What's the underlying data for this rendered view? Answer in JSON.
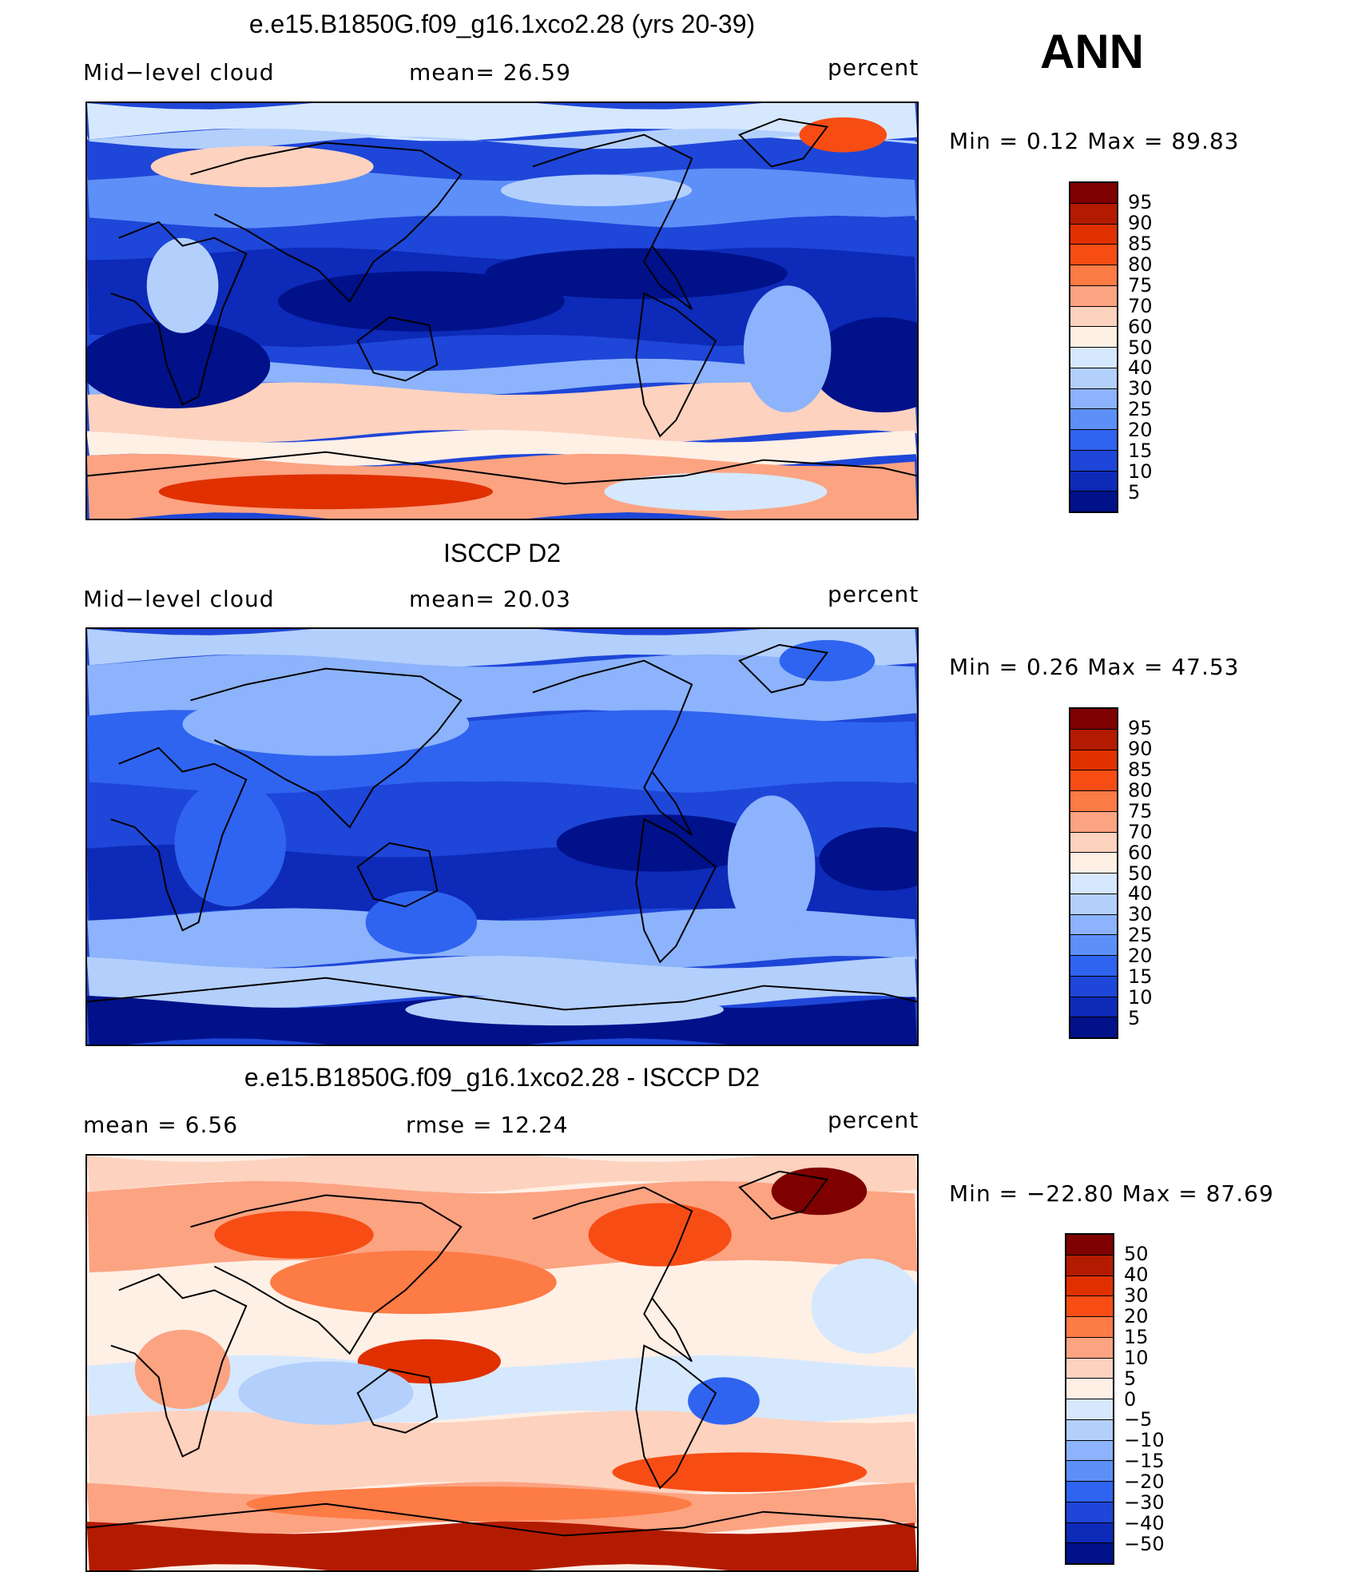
{
  "season": "ANN",
  "panels": [
    {
      "title": "e.e15.B1850G.f09_g16.1xco2.28 (yrs 20-39)",
      "left_label": "Mid−level  cloud",
      "mid_label": "mean=   26.59",
      "units": "percent",
      "minmax": "Min  =      0.12  Max  =     89.83",
      "colorbar": {
        "labels": [
          "95",
          "90",
          "85",
          "80",
          "75",
          "70",
          "60",
          "50",
          "40",
          "30",
          "25",
          "20",
          "15",
          "10",
          "5"
        ],
        "colors": [
          "#7f0000",
          "#b31b00",
          "#e03000",
          "#f74d14",
          "#fd7b45",
          "#fca382",
          "#fdd2bf",
          "#fff0e6",
          "#d6e8fd",
          "#b3cffc",
          "#8cb3fb",
          "#5d8ff8",
          "#2f64f0",
          "#1e46d8",
          "#0d2ab8",
          "#00118a"
        ]
      },
      "map_theme": "model"
    },
    {
      "title": "ISCCP D2",
      "left_label": "Mid−level  cloud",
      "mid_label": "mean=   20.03",
      "units": "percent",
      "minmax": "Min  =      0.26  Max  =     47.53",
      "colorbar": {
        "labels": [
          "95",
          "90",
          "85",
          "80",
          "75",
          "70",
          "60",
          "50",
          "40",
          "30",
          "25",
          "20",
          "15",
          "10",
          "5"
        ],
        "colors": [
          "#7f0000",
          "#b31b00",
          "#e03000",
          "#f74d14",
          "#fd7b45",
          "#fca382",
          "#fdd2bf",
          "#fff0e6",
          "#d6e8fd",
          "#b3cffc",
          "#8cb3fb",
          "#5d8ff8",
          "#2f64f0",
          "#1e46d8",
          "#0d2ab8",
          "#00118a"
        ]
      },
      "map_theme": "obs"
    },
    {
      "title": "e.e15.B1850G.f09_g16.1xco2.28 - ISCCP D2",
      "left_label": "mean  =     6.56",
      "mid_label": "rmse  =    12.24",
      "units": "percent",
      "minmax": "Min  = −22.80  Max  =     87.69",
      "colorbar": {
        "labels": [
          "50",
          "40",
          "30",
          "20",
          "15",
          "10",
          "5",
          "0",
          "−5",
          "−10",
          "−15",
          "−20",
          "−30",
          "−40",
          "−50"
        ],
        "colors": [
          "#7f0000",
          "#b31b00",
          "#e03000",
          "#f74d14",
          "#fd7b45",
          "#fca382",
          "#fdd2bf",
          "#fff0e6",
          "#d6e8fd",
          "#b3cffc",
          "#8cb3fb",
          "#5d8ff8",
          "#2f64f0",
          "#1e46d8",
          "#0d2ab8",
          "#00118a"
        ]
      },
      "map_theme": "diff"
    }
  ]
}
